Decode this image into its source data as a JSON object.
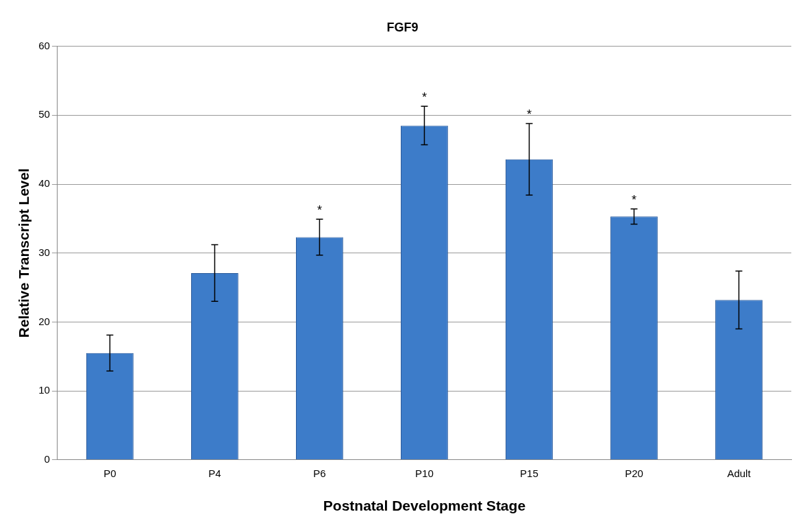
{
  "chart_data": {
    "type": "bar",
    "title": "FGF9",
    "xlabel": "Postnatal Development Stage",
    "ylabel": "Relative Transcript Level",
    "categories": [
      "P0",
      "P4",
      "P6",
      "P10",
      "P15",
      "P20",
      "Adult"
    ],
    "values": [
      15.5,
      27.1,
      32.3,
      48.5,
      43.6,
      35.3,
      23.2
    ],
    "errors": [
      2.6,
      4.1,
      2.6,
      2.8,
      5.2,
      1.1,
      4.2
    ],
    "color": "#3d7cc9",
    "ylim": [
      0,
      60
    ],
    "yticks": [
      0,
      10,
      20,
      30,
      40,
      50,
      60
    ],
    "grid": "y",
    "legend": false,
    "annotations": [
      {
        "text": "*",
        "x": "P6",
        "y": 34.9
      },
      {
        "text": "*",
        "x": "P10",
        "y": 51.3
      },
      {
        "text": "*",
        "x": "P15",
        "y": 48.8
      },
      {
        "text": "*",
        "x": "P20",
        "y": 36.4
      }
    ]
  }
}
